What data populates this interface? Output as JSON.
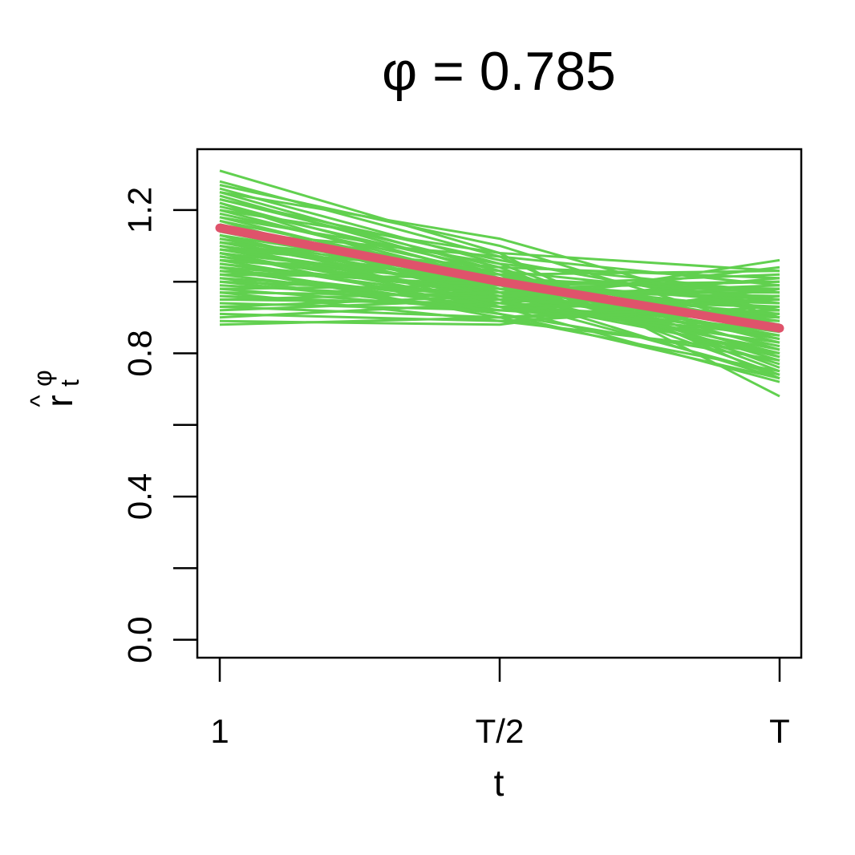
{
  "chart_data": {
    "type": "line",
    "title": "φ = 0.785",
    "xlabel": "t",
    "ylabel": {
      "main": "r",
      "hat": "^",
      "superscript": "φ",
      "subscript": "t"
    },
    "x_tick_labels": [
      "1",
      "T/2",
      "T"
    ],
    "ylim": [
      -0.05,
      1.37
    ],
    "y_ticks": [
      0.0,
      0.2,
      0.4,
      0.6,
      0.8,
      1.0,
      1.2
    ],
    "y_tick_labels": [
      "0.0",
      "",
      "0.4",
      "",
      "0.8",
      "",
      "1.2"
    ],
    "grid": false,
    "legend": "none",
    "colors": {
      "replicates": "#61D04F",
      "mean": "#DF536B",
      "frame": "#000000"
    },
    "series_mean": {
      "x": [
        0,
        0.5,
        1
      ],
      "values": [
        1.15,
        1.0,
        0.87
      ]
    },
    "series_replicates": [
      [
        1.31,
        1.08,
        0.68
      ],
      [
        1.28,
        1.07,
        0.73
      ],
      [
        1.26,
        1.05,
        0.76
      ],
      [
        1.25,
        1.03,
        0.79
      ],
      [
        1.24,
        1.02,
        0.74
      ],
      [
        1.23,
        1.04,
        0.75
      ],
      [
        1.22,
        1.01,
        0.78
      ],
      [
        1.21,
        1.03,
        0.81
      ],
      [
        1.2,
        1.0,
        0.77
      ],
      [
        1.19,
        1.02,
        0.83
      ],
      [
        1.18,
        0.99,
        0.8
      ],
      [
        1.17,
        1.01,
        0.84
      ],
      [
        1.16,
        0.98,
        0.82
      ],
      [
        1.16,
        1.0,
        0.86
      ],
      [
        1.15,
        0.97,
        0.79
      ],
      [
        1.15,
        1.02,
        0.88
      ],
      [
        1.14,
        0.99,
        0.85
      ],
      [
        1.13,
        0.96,
        0.81
      ],
      [
        1.13,
        1.01,
        0.9
      ],
      [
        1.12,
        0.98,
        0.87
      ],
      [
        1.12,
        1.0,
        0.92
      ],
      [
        1.11,
        0.97,
        0.84
      ],
      [
        1.11,
        0.99,
        0.89
      ],
      [
        1.1,
        0.95,
        0.8
      ],
      [
        1.1,
        1.0,
        0.94
      ],
      [
        1.09,
        0.96,
        0.86
      ],
      [
        1.09,
        0.98,
        0.91
      ],
      [
        1.08,
        0.94,
        0.83
      ],
      [
        1.08,
        0.99,
        0.95
      ],
      [
        1.07,
        0.96,
        0.88
      ],
      [
        1.07,
        0.97,
        0.93
      ],
      [
        1.06,
        0.93,
        0.85
      ],
      [
        1.06,
        1.0,
        0.98
      ],
      [
        1.05,
        0.95,
        0.9
      ],
      [
        1.05,
        0.97,
        0.96
      ],
      [
        1.04,
        0.92,
        0.87
      ],
      [
        1.04,
        0.98,
        1.0
      ],
      [
        1.03,
        0.94,
        0.91
      ],
      [
        1.03,
        0.99,
        1.02
      ],
      [
        1.02,
        0.93,
        0.89
      ],
      [
        1.01,
        0.96,
        0.94
      ],
      [
        1.0,
        0.92,
        0.9
      ],
      [
        1.0,
        0.97,
        0.97
      ],
      [
        0.99,
        0.95,
        0.93
      ],
      [
        0.98,
        0.92,
        0.91
      ],
      [
        0.97,
        0.96,
        0.99
      ],
      [
        0.96,
        0.93,
        0.95
      ],
      [
        0.95,
        0.94,
        1.01
      ],
      [
        0.94,
        0.92,
        0.96
      ],
      [
        0.93,
        0.9,
        0.92
      ],
      [
        0.92,
        0.95,
        1.04
      ],
      [
        0.91,
        0.89,
        0.93
      ],
      [
        0.9,
        0.94,
        1.06
      ],
      [
        0.89,
        0.88,
        0.98
      ],
      [
        0.88,
        0.9,
        0.95
      ],
      [
        1.27,
        1.1,
        0.86
      ],
      [
        1.23,
        1.06,
        0.92
      ],
      [
        1.2,
        1.08,
        1.03
      ],
      [
        1.18,
        1.05,
        0.97
      ],
      [
        1.14,
        1.07,
        0.99
      ],
      [
        1.11,
        1.04,
        1.01
      ],
      [
        1.09,
        1.03,
        0.95
      ],
      [
        1.06,
        1.02,
        1.03
      ],
      [
        1.02,
        1.01,
        0.97
      ],
      [
        0.98,
        0.99,
        1.0
      ],
      [
        1.13,
        0.93,
        0.72
      ],
      [
        1.08,
        0.91,
        0.73
      ],
      [
        1.04,
        0.9,
        0.75
      ],
      [
        1.01,
        0.91,
        0.78
      ],
      [
        0.97,
        0.89,
        0.8
      ],
      [
        1.22,
        0.97,
        0.73
      ],
      [
        1.17,
        0.95,
        0.74
      ],
      [
        0.95,
        0.97,
        0.96
      ],
      [
        0.93,
        0.96,
        0.98
      ],
      [
        1.25,
        1.12,
        0.9
      ]
    ]
  }
}
